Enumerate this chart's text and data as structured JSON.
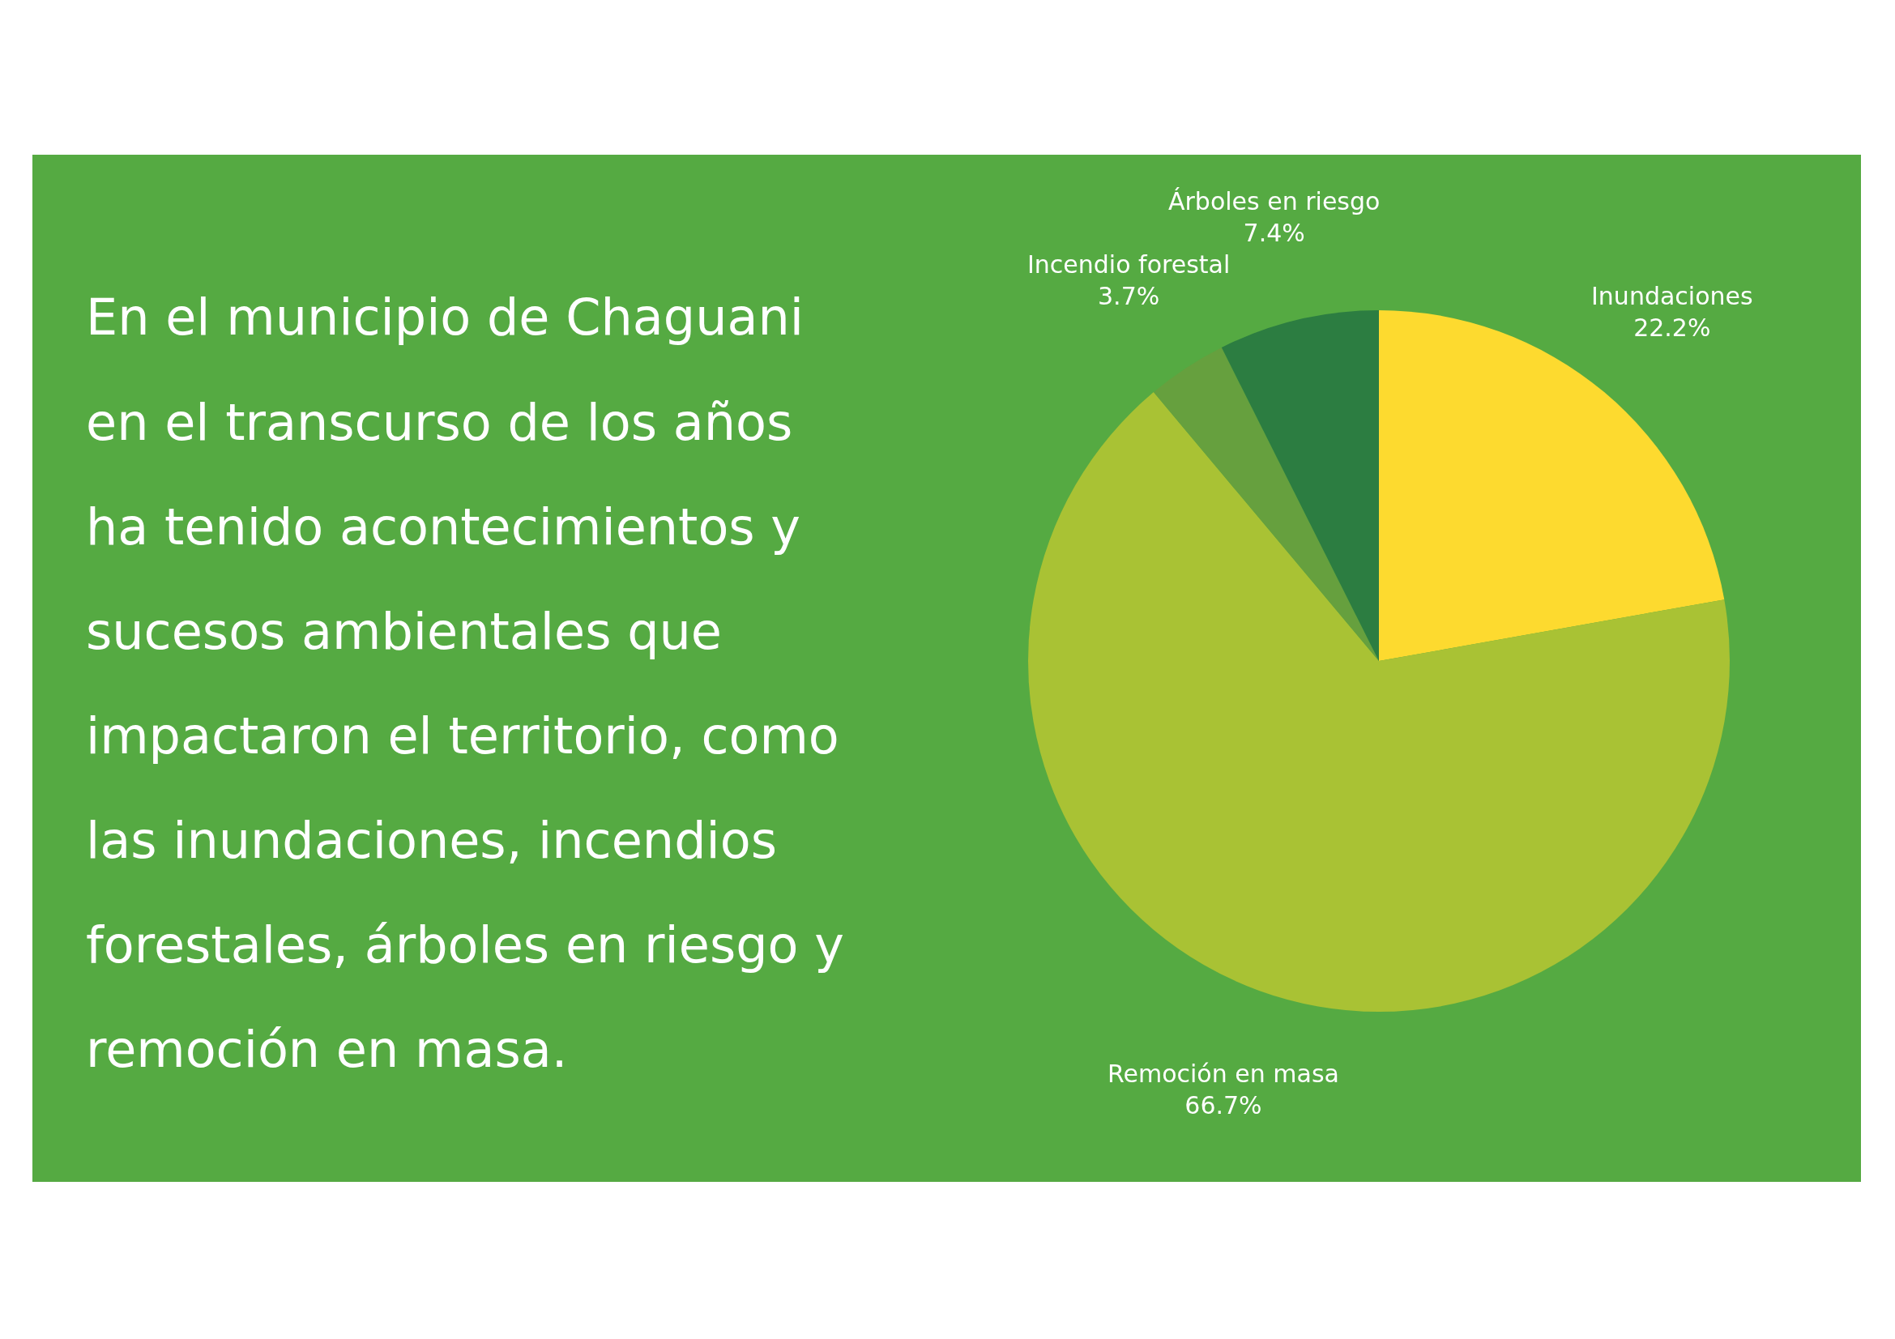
{
  "chart_data": {
    "type": "pie",
    "categories": [
      "Inundaciones",
      "Remoción en masa",
      "Incendio forestal",
      "Árboles en riesgo"
    ],
    "values": [
      22.2,
      66.7,
      3.7,
      7.4
    ],
    "value_labels": [
      "22.2%",
      "66.7%",
      "3.7%",
      "7.4%"
    ],
    "colors": [
      "#fdda2f",
      "#a9c234",
      "#66a03e",
      "#2c7d41"
    ],
    "legend": false,
    "annotations": [
      "En el municipio de Chaguani en el transcurso de los años ha tenido acontecimientos y sucesos ambientales que impactaron el territorio, como las inundaciones, incendios forestales, árboles en riesgo y remoción en masa."
    ]
  }
}
